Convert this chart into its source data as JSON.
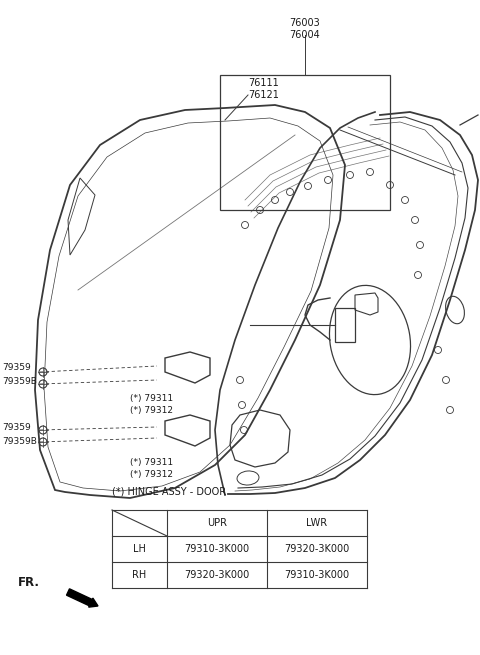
{
  "bg_color": "#ffffff",
  "fig_width": 4.8,
  "fig_height": 6.55,
  "line_color": "#3a3a3a",
  "text_color": "#1a1a1a",
  "label_color": "#3a3a3a",
  "hinge_label": "(*) HINGE ASSY - DOOR",
  "table_data": {
    "rows": [
      [
        "LH",
        "79310-3K000",
        "79320-3K000"
      ],
      [
        "RH",
        "79320-3K000",
        "79310-3K000"
      ]
    ]
  },
  "fr_label": "FR.",
  "label_76003": "76003\n76004",
  "label_76111": "76111\n76121",
  "label_79359_u": "79359",
  "label_79359B_u": "79359B",
  "label_79311_u": "(*) 79311",
  "label_79312_u": "(*) 79312",
  "label_79359_l": "79359",
  "label_79359B_l": "79359B",
  "label_79311_l": "(*) 79311",
  "label_79312_l": "(*) 79312"
}
